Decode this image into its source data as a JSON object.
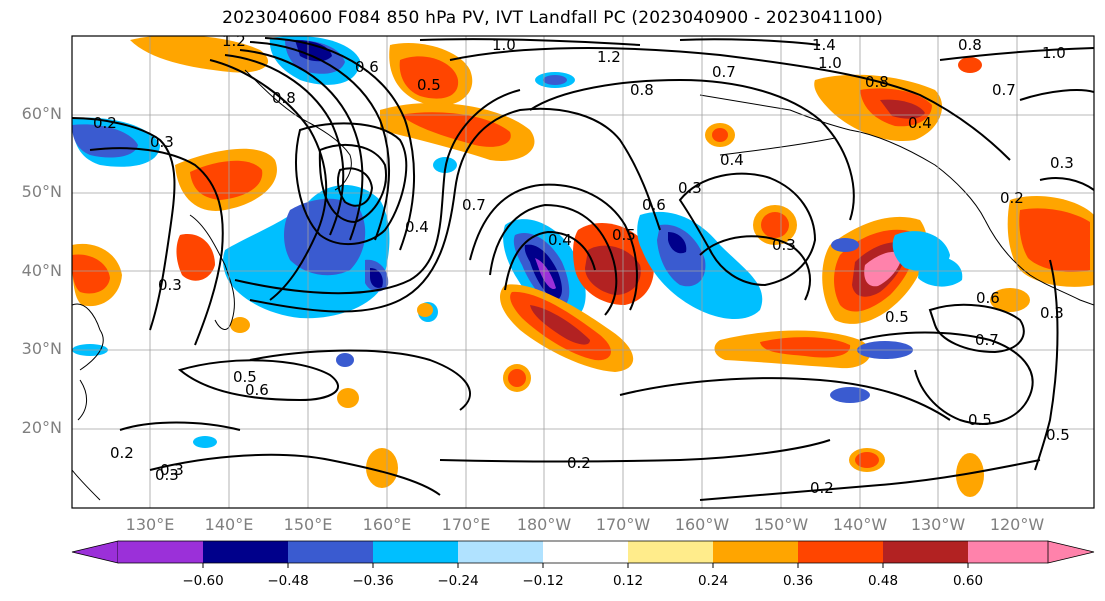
{
  "title": "2023040600 F084 850 hPa PV, IVT Landfall PC (2023040900 - 2023041100)",
  "lat_labels": [
    "60°N",
    "50°N",
    "40°N",
    "30°N",
    "20°N"
  ],
  "lon_labels": [
    "130°E",
    "140°E",
    "150°E",
    "160°E",
    "170°E",
    "180°W",
    "170°W",
    "160°W",
    "150°W",
    "140°W",
    "130°W",
    "120°W"
  ],
  "colorbar": {
    "colors": [
      "#9b30d9",
      "#00008b",
      "#3a5bd0",
      "#00bfff",
      "#b0e2ff",
      "#ffffff",
      "#ffec8b",
      "#ffa500",
      "#ff4500",
      "#b22222",
      "#ff82ab"
    ],
    "tick_labels": [
      "−0.60",
      "−0.48",
      "−0.36",
      "−0.24",
      "−0.12",
      "0.12",
      "0.24",
      "0.36",
      "0.48",
      "0.60"
    ]
  },
  "contour_labels": [
    "1.2",
    "1.0",
    "1.2",
    "0.8",
    "1.4",
    "1.0",
    "0.8",
    "1.0",
    "0.6",
    "0.5",
    "0.7",
    "0.8",
    "0.7",
    "0.8",
    "0.2",
    "0.3",
    "0.3",
    "0.3",
    "0.4",
    "0.4",
    "0.7",
    "0.4",
    "0.3",
    "0.6",
    "0.5",
    "0.6",
    "0.2",
    "0.4",
    "0.5",
    "0.3",
    "0.5",
    "0.2",
    "0.2",
    "0.3",
    "0.5",
    "0.6",
    "0.7",
    "0.5",
    "0.3",
    "0.2",
    "0.3"
  ]
}
